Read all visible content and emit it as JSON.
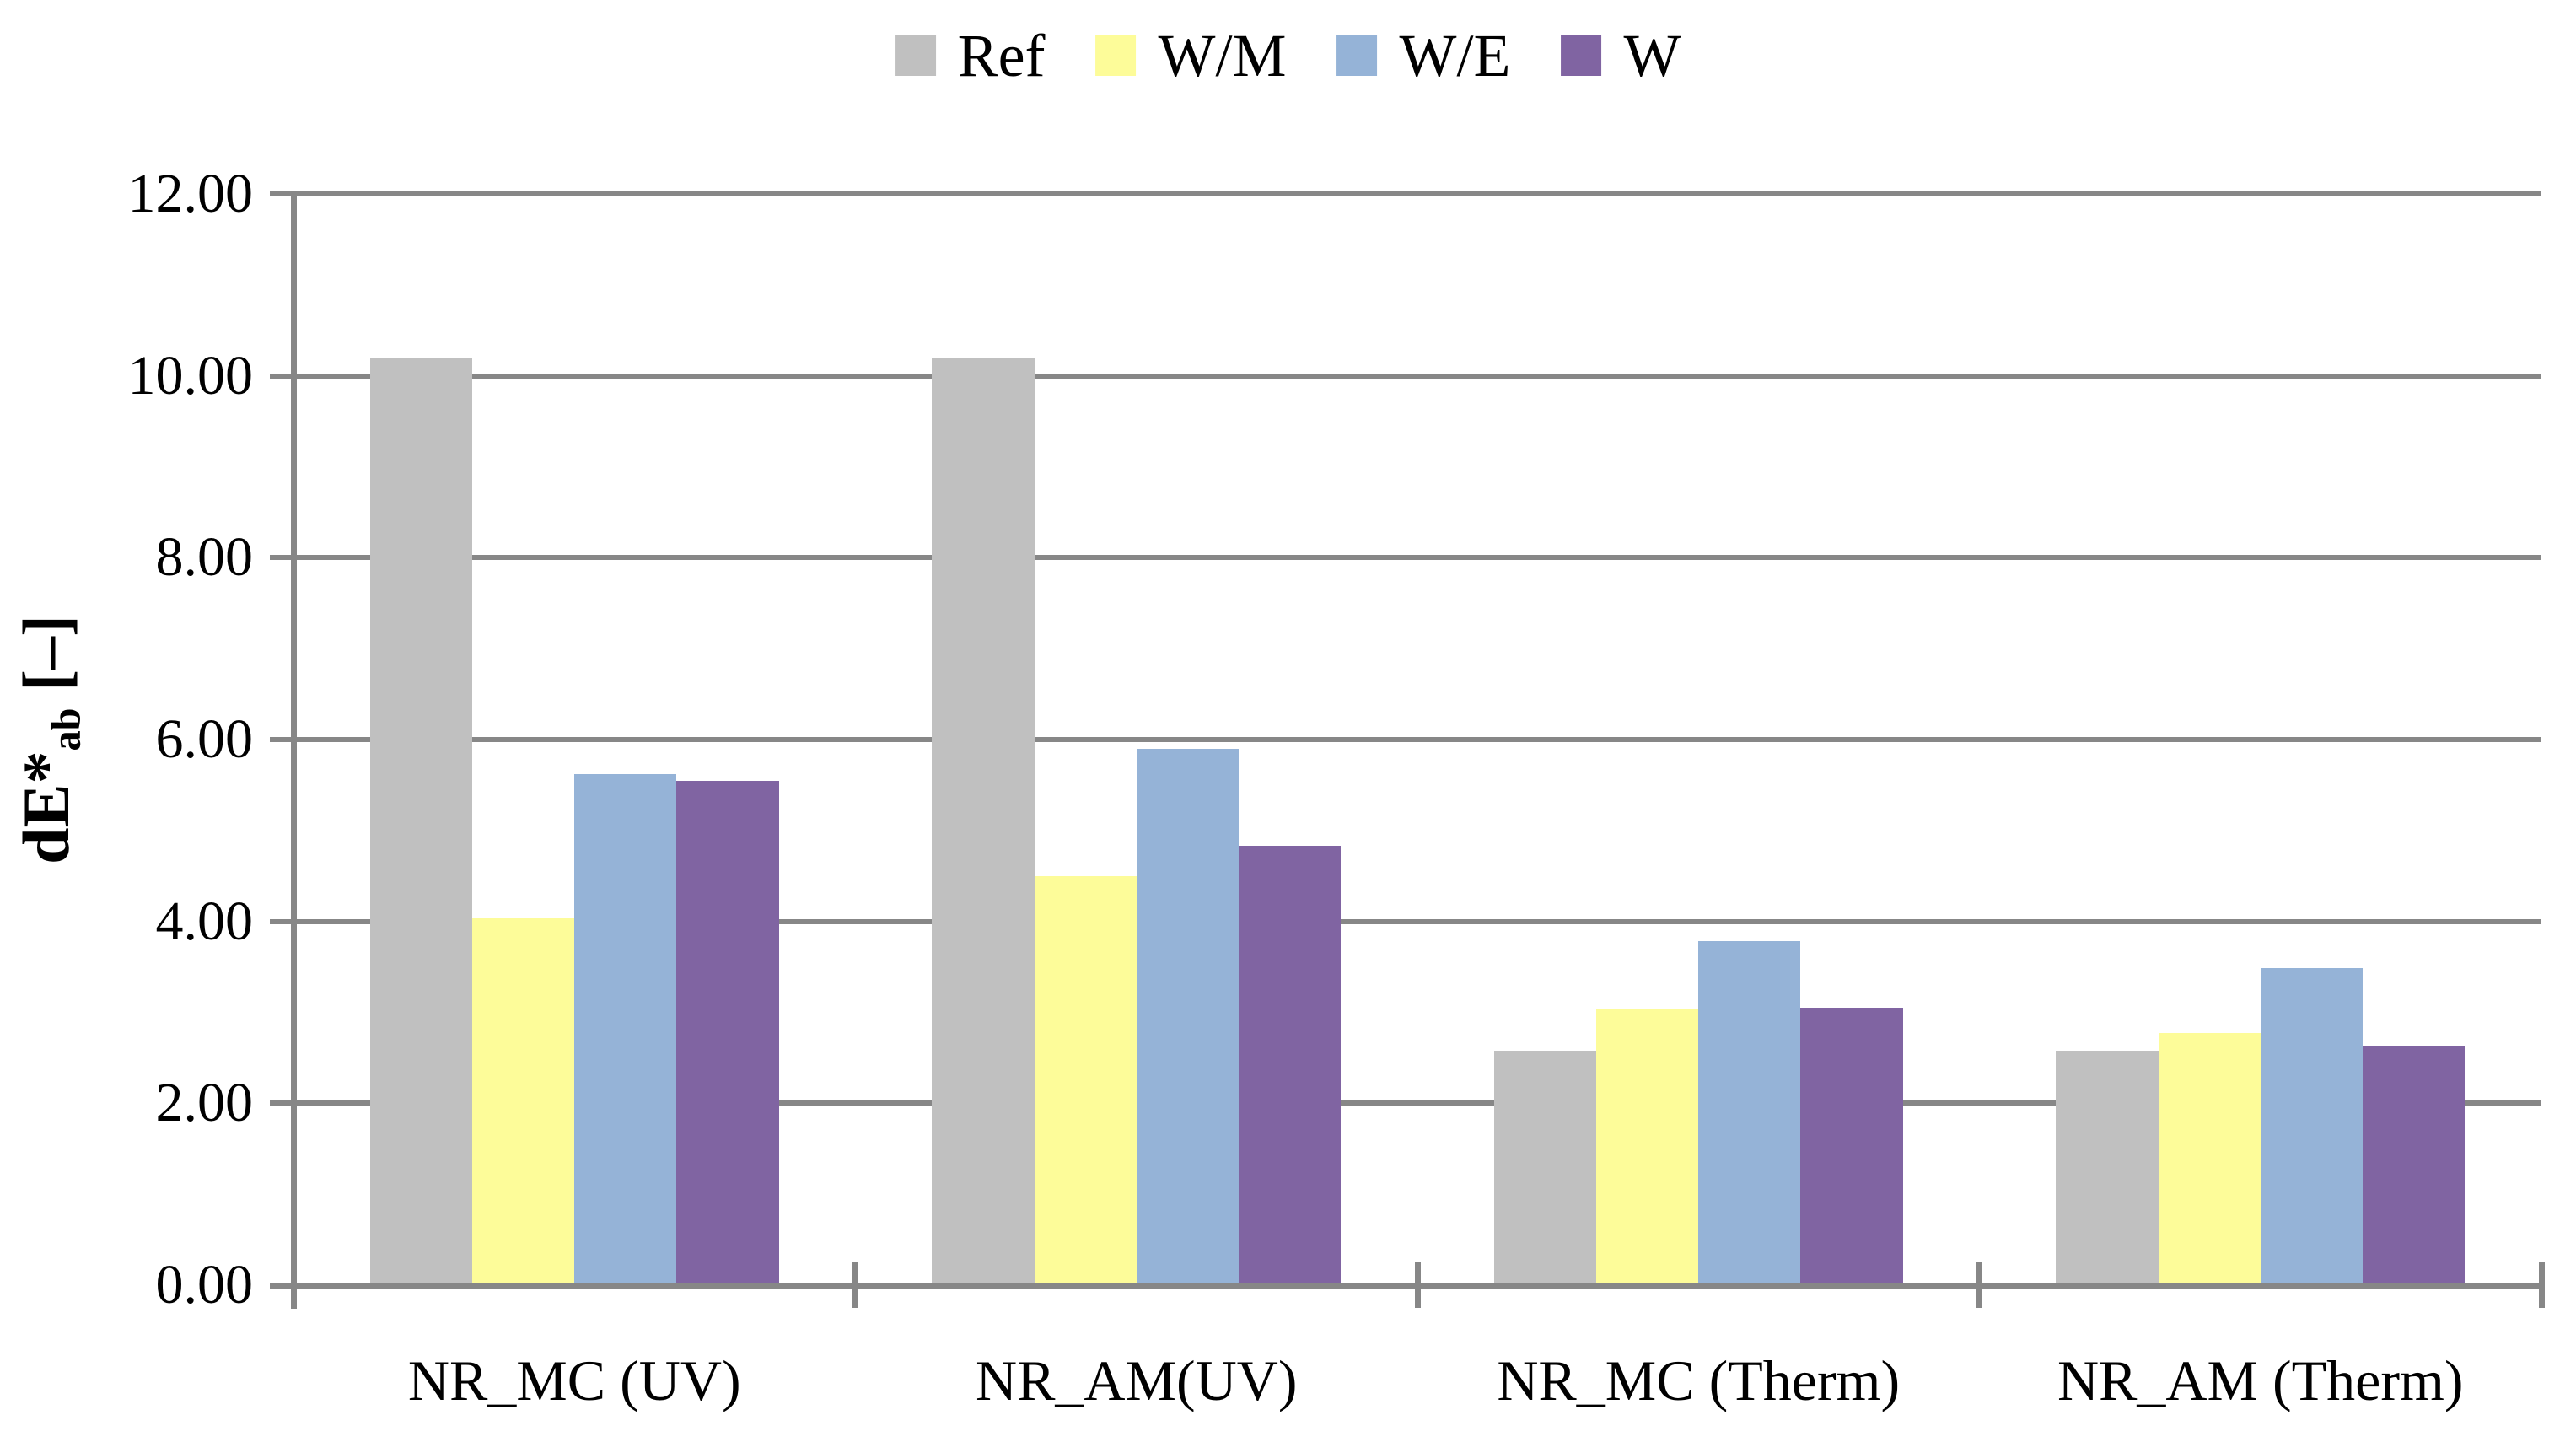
{
  "chart_data": {
    "type": "bar",
    "title": "",
    "ylabel": {
      "prefix": "dE*",
      "sub": "ab",
      "suffix": " [–]"
    },
    "categories": [
      "NR_MC (UV)",
      "NR_AM(UV)",
      "NR_MC (Therm)",
      "NR_AM (Therm)"
    ],
    "series": [
      {
        "name": "Ref",
        "color": "#c0c0c0",
        "values": [
          10.2,
          10.2,
          2.58,
          2.58
        ]
      },
      {
        "name": "W/M",
        "color": "#fdfc99",
        "values": [
          4.03,
          4.5,
          3.04,
          2.77
        ]
      },
      {
        "name": "W/E",
        "color": "#95b3d7",
        "values": [
          5.62,
          5.9,
          3.78,
          3.49
        ]
      },
      {
        "name": "W",
        "color": "#8064a2",
        "values": [
          5.55,
          4.83,
          3.05,
          2.63
        ]
      }
    ],
    "ylim": [
      0,
      12
    ],
    "ytick_step": 2,
    "ytick_labels": [
      "0.00",
      "2.00",
      "4.00",
      "6.00",
      "8.00",
      "10.00",
      "12.00"
    ],
    "grid": true,
    "legend_position": "top",
    "axis_color": "#878787",
    "background_color": "#ffffff",
    "text_color": "#000000"
  }
}
